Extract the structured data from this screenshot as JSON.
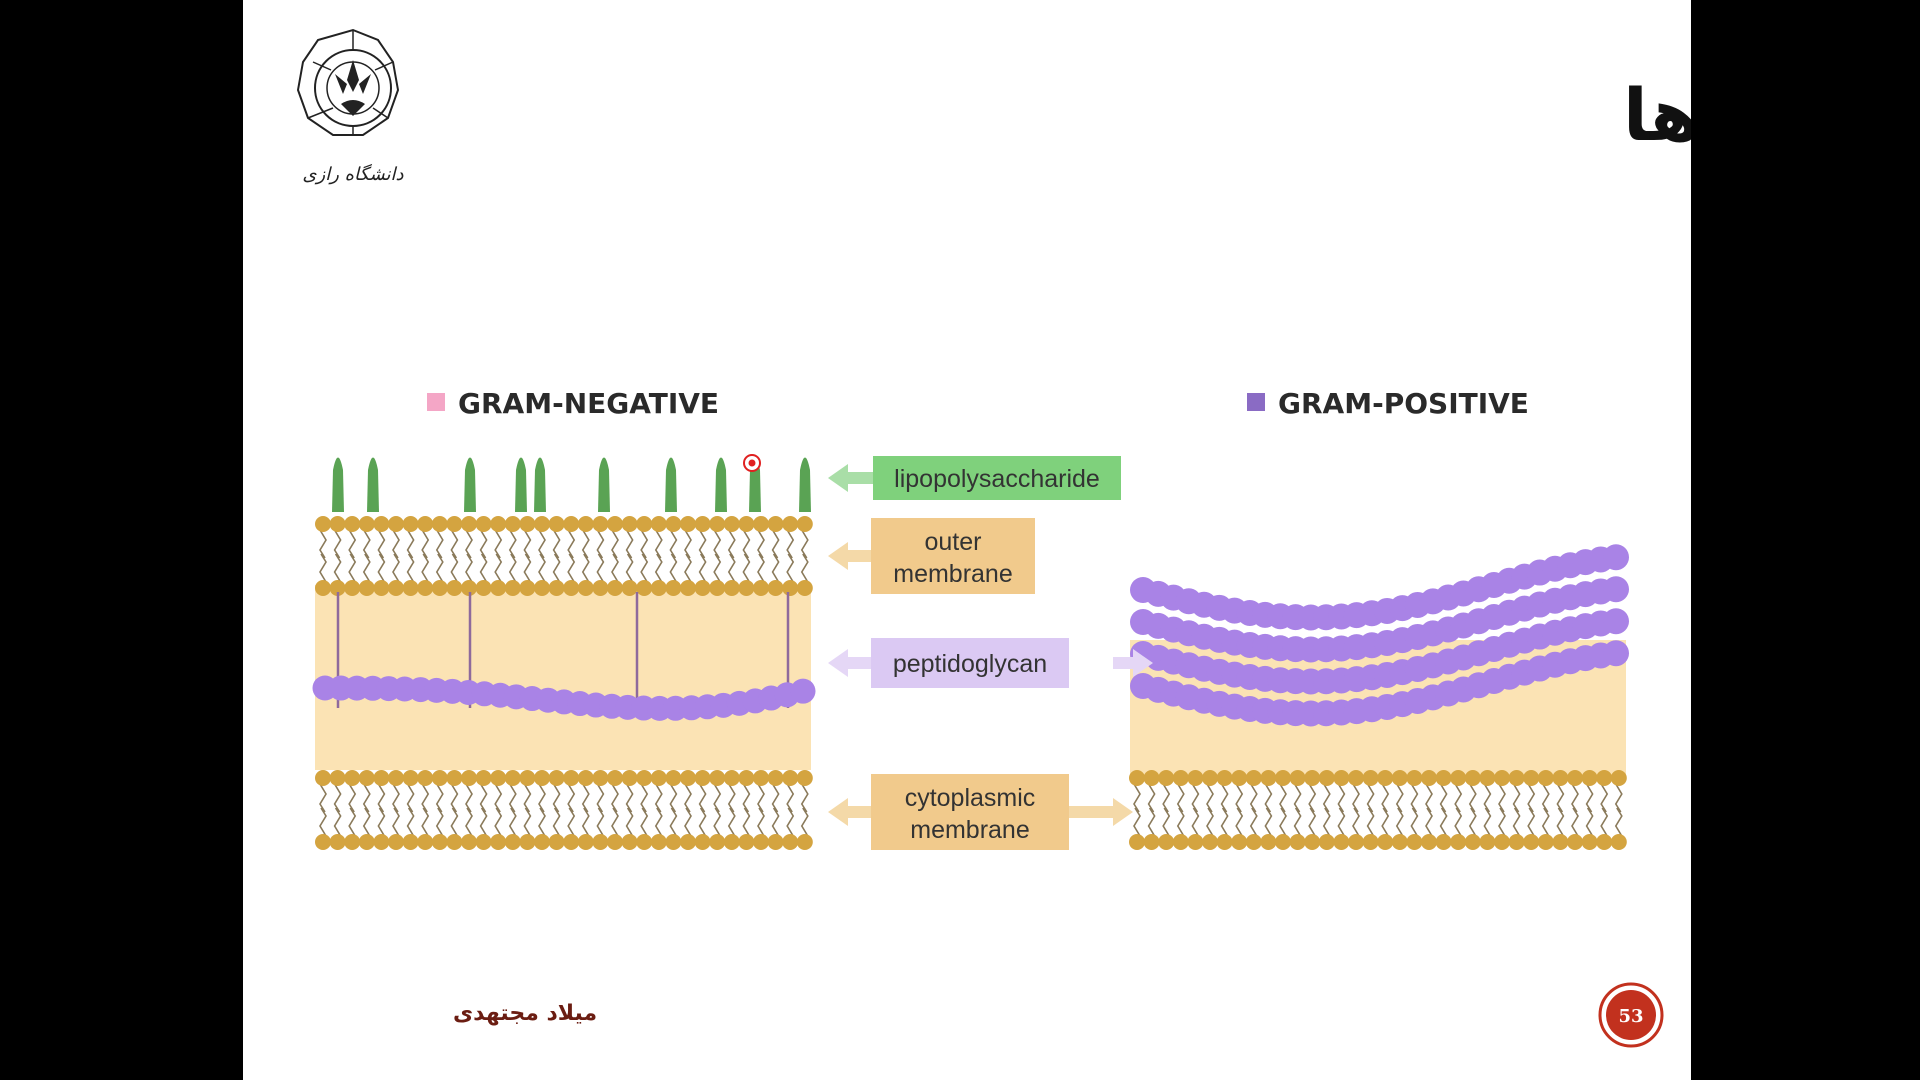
{
  "slide": {
    "title": "ساختار دیواره در باکتری ها",
    "logo_text": "دانشگاه رازی",
    "author": "میلاد مجتهدی",
    "page_number": "53"
  },
  "diagram": {
    "gram_negative": {
      "label": "GRAM-NEGATIVE",
      "color": "#f4a6c6"
    },
    "gram_positive": {
      "label": "GRAM-POSITIVE",
      "color": "#8a6bc4"
    },
    "labels": {
      "lipopolysaccharide": "lipopolysaccharide",
      "outer_membrane_1": "outer",
      "outer_membrane_2": "membrane",
      "peptidoglycan": "peptidoglycan",
      "cytoplasmic_1": "cytoplasmic",
      "cytoplasmic_2": "membrane"
    },
    "colors": {
      "lps": "#5aa354",
      "lipid_head": "#d4a440",
      "periplasm": "#fbe3b4",
      "peptidoglycan": "#a983e6",
      "label_green": "#7fd17c",
      "label_tan": "#f1ca8c",
      "label_lavender": "#dbc9f3",
      "page_badge": "#c2311e"
    }
  }
}
